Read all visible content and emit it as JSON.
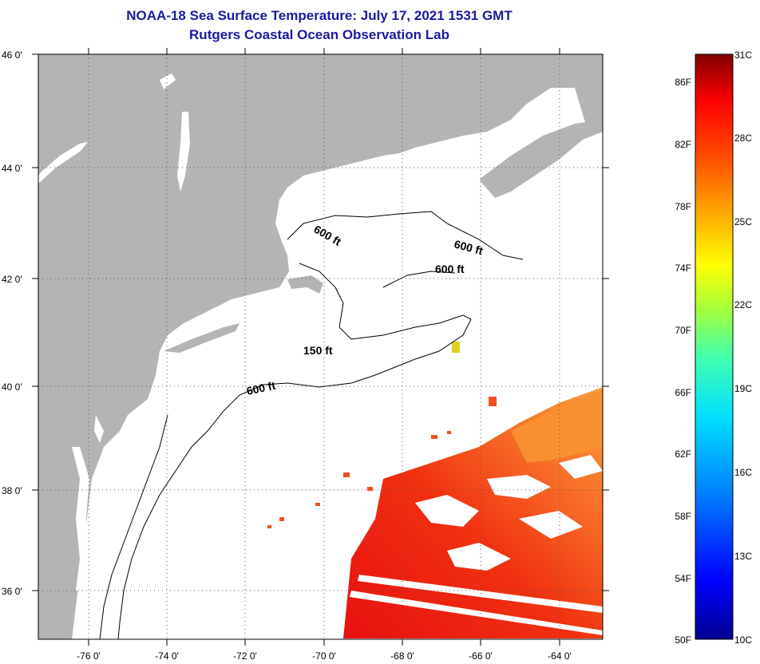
{
  "title": {
    "line1": "NOAA-18 Sea Surface Temperature:  July 17, 2021 1531 GMT",
    "line2": "Rutgers Coastal Ocean Observation Lab"
  },
  "map": {
    "lat_labels": [
      "46 0'",
      "44 0'",
      "42 0'",
      "40 0'",
      "38 0'",
      "36 0'"
    ],
    "lon_labels": [
      "-76 0'",
      "-74 0'",
      "-72 0'",
      "-70 0'",
      "-68 0'",
      "-66 0'",
      "-64 0'"
    ],
    "contour_labels": [
      "600 ft",
      "600 ft",
      "600 ft",
      "150 ft",
      "600 ft"
    ],
    "colors": {
      "land": "#b4b4b4",
      "water": "#ffffff",
      "grid": "#000000"
    }
  },
  "colorbar": {
    "fahrenheit_labels": [
      "86F",
      "82F",
      "78F",
      "74F",
      "70F",
      "66F",
      "62F",
      "58F",
      "54F",
      "50F"
    ],
    "celsius_labels": [
      "31C",
      "28C",
      "25C",
      "22C",
      "19C",
      "16C",
      "13C",
      "10C"
    ],
    "colors": [
      "#000090",
      "#0000ff",
      "#0080ff",
      "#00e0ff",
      "#40ffb0",
      "#a0ff40",
      "#ffff00",
      "#ffb000",
      "#ff5000",
      "#ff0000",
      "#800000"
    ]
  }
}
